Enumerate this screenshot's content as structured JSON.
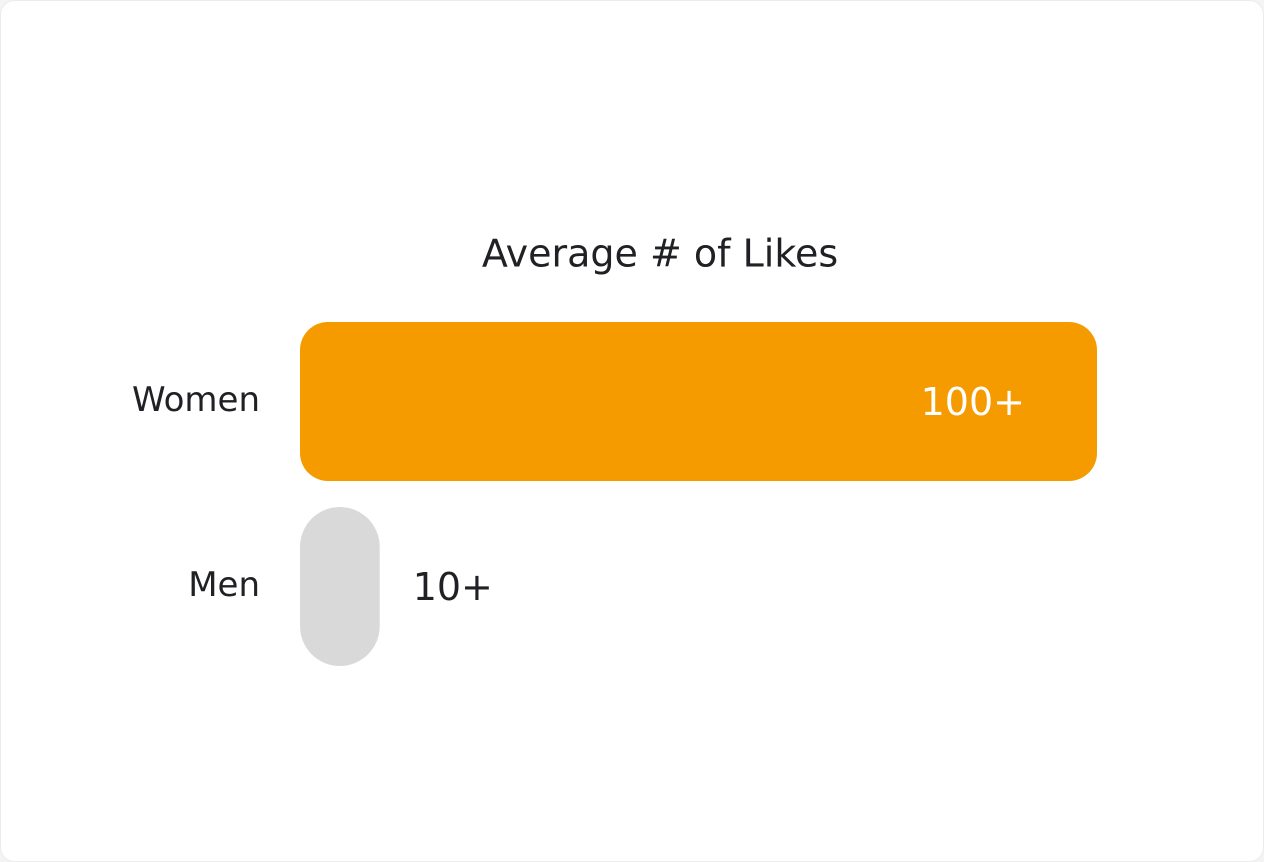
{
  "chart_data": {
    "type": "bar",
    "orientation": "horizontal",
    "title": "Average # of Likes",
    "categories": [
      "Women",
      "Men"
    ],
    "values": [
      100,
      10
    ],
    "value_labels": [
      "100+",
      "10+"
    ],
    "colors": [
      "#f59b00",
      "#d9d9d9"
    ]
  }
}
